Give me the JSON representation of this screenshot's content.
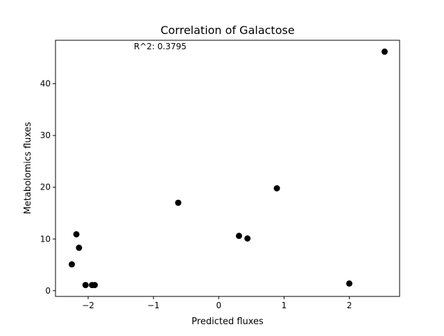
{
  "chart_data": {
    "type": "scatter",
    "title": "Correlation of Galactose",
    "xlabel": "Predicted fluxes",
    "ylabel": "Metabolomics fluxes",
    "annotation": {
      "text": "R^2: 0.3795",
      "color": "#e00000"
    },
    "xlim": [
      -2.5,
      2.77
    ],
    "ylim": [
      -1.1,
      48.4
    ],
    "xticks": [
      -2,
      -1,
      0,
      1,
      2
    ],
    "xtick_labels": [
      "−2",
      "−1",
      "0",
      "1",
      "2"
    ],
    "yticks": [
      0,
      10,
      20,
      30,
      40
    ],
    "ytick_labels": [
      "0",
      "10",
      "20",
      "30",
      "40"
    ],
    "grid": false,
    "marker_color": "#000000",
    "points": [
      {
        "x": -2.25,
        "y": 5.1
      },
      {
        "x": -2.18,
        "y": 10.9
      },
      {
        "x": -2.14,
        "y": 8.3
      },
      {
        "x": -2.04,
        "y": 1.1
      },
      {
        "x": -1.94,
        "y": 1.1
      },
      {
        "x": -1.9,
        "y": 1.1
      },
      {
        "x": -0.62,
        "y": 17.0
      },
      {
        "x": 0.31,
        "y": 10.6
      },
      {
        "x": 0.44,
        "y": 10.1
      },
      {
        "x": 0.89,
        "y": 19.8
      },
      {
        "x": 2.0,
        "y": 1.4
      },
      {
        "x": 2.54,
        "y": 46.2
      }
    ]
  }
}
